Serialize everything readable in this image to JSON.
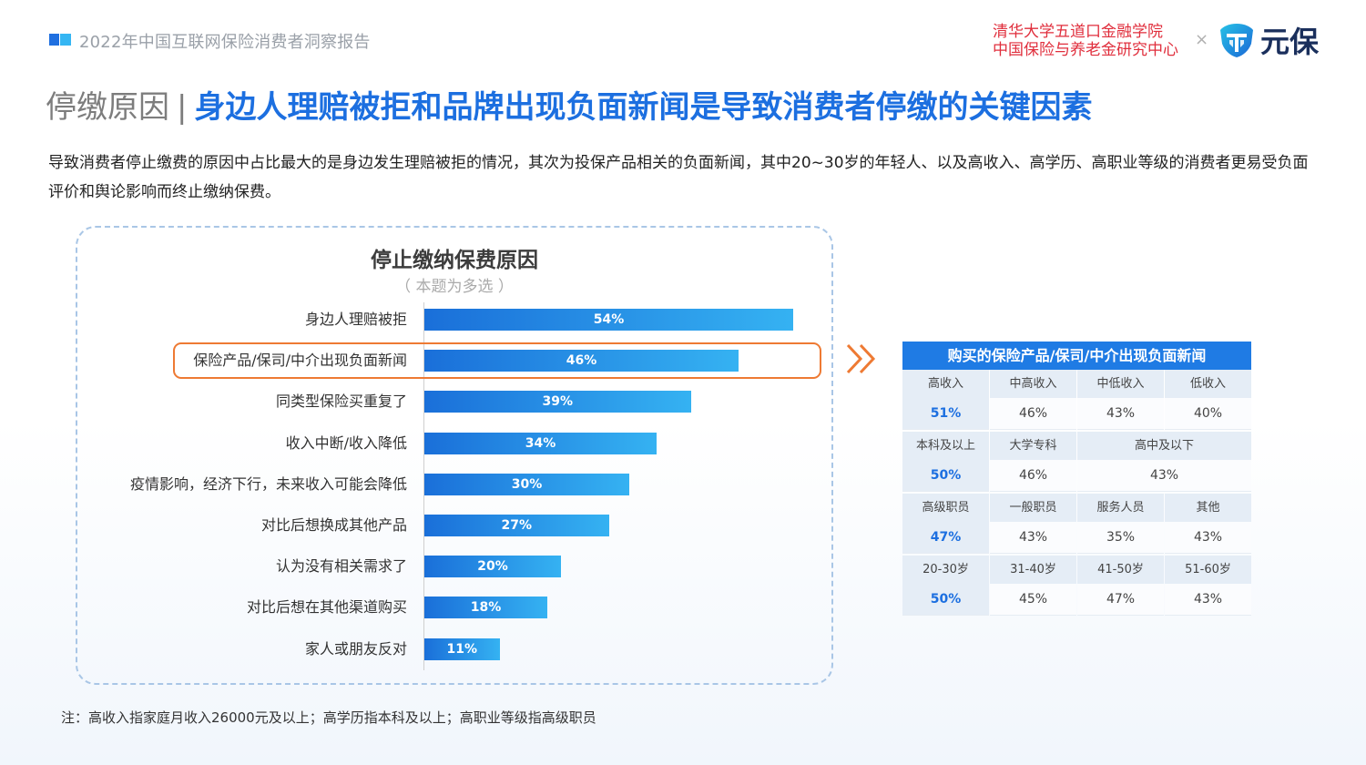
{
  "header": {
    "report_title": "2022年中国互联网保险消费者洞察报告",
    "org_line1": "清华大学五道口金融学院",
    "org_line2": "中国保险与养老金研究中心",
    "times_sign": "×",
    "brand_name": "元保"
  },
  "page_title": {
    "prefix": "停缴原因",
    "separator": "|",
    "main": "身边人理赔被拒和品牌出现负面新闻是导致消费者停缴的关键因素"
  },
  "intro": "导致消费者停止缴费的原因中占比最大的是身边发生理赔被拒的情况，其次为投保产品相关的负面新闻，其中20~30岁的年轻人、以及高收入、高学历、高职业等级的消费者更易受负面评价和舆论影响而终止缴纳保费。",
  "colors": {
    "accent_blue": "#1c6fe0",
    "bar_start": "#1a6fd9",
    "bar_end": "#35b2f2",
    "highlight_orange": "#ee7a33",
    "org_red": "#e02e3c"
  },
  "chart_data": {
    "type": "bar",
    "orientation": "horizontal",
    "title": "停止缴纳保费原因",
    "subtitle": "（ 本题为多选 ）",
    "categories": [
      "身边人理赔被拒",
      "保险产品/保司/中介出现负面新闻",
      "同类型保险买重复了",
      "收入中断/收入降低",
      "疫情影响，经济下行，未来收入可能会降低",
      "对比后想换成其他产品",
      "认为没有相关需求了",
      "对比后想在其他渠道购买",
      "家人或朋友反对"
    ],
    "values": [
      54,
      46,
      39,
      34,
      30,
      27,
      20,
      18,
      11
    ],
    "value_labels": [
      "54%",
      "46%",
      "39%",
      "34%",
      "30%",
      "27%",
      "20%",
      "18%",
      "11%"
    ],
    "unit": "%",
    "highlighted_category_index": 1
  },
  "side_table": {
    "title": "购买的保险产品/保司/中介出现负面新闻",
    "groups": [
      {
        "headers": [
          "高收入",
          "中高收入",
          "中低收入",
          "低收入"
        ],
        "values": [
          "51%",
          "46%",
          "43%",
          "40%"
        ]
      },
      {
        "headers": [
          "本科及以上",
          "大学专科",
          "高中及以下"
        ],
        "values": [
          "50%",
          "46%",
          "43%"
        ]
      },
      {
        "headers": [
          "高级职员",
          "一般职员",
          "服务人员",
          "其他"
        ],
        "values": [
          "47%",
          "43%",
          "35%",
          "43%"
        ]
      },
      {
        "headers": [
          "20-30岁",
          "31-40岁",
          "41-50岁",
          "51-60岁"
        ],
        "values": [
          "50%",
          "45%",
          "47%",
          "43%"
        ]
      }
    ]
  },
  "footnote": "注：高收入指家庭月收入26000元及以上；高学历指本科及以上；高职业等级指高级职员"
}
